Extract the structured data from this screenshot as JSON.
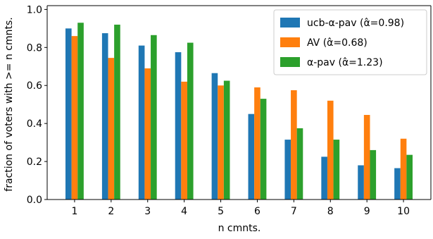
{
  "chart_data": {
    "type": "bar",
    "title": "",
    "xlabel": "n cmnts.",
    "ylabel": "fraction of voters with >= n cmnts.",
    "categories": [
      "1",
      "2",
      "3",
      "4",
      "5",
      "6",
      "7",
      "8",
      "9",
      "10"
    ],
    "ylim": [
      0,
      1.02
    ],
    "yticks": [
      "0.0",
      "0.2",
      "0.4",
      "0.6",
      "0.8",
      "1.0"
    ],
    "grid": false,
    "legend_position": "top-right",
    "series": [
      {
        "name": "ucb-α-pav (α̂=0.98)",
        "color": "#1f77b4",
        "values": [
          0.9,
          0.875,
          0.81,
          0.775,
          0.665,
          0.45,
          0.315,
          0.225,
          0.18,
          0.165
        ]
      },
      {
        "name": "AV (α̂=0.68)",
        "color": "#ff7f0e",
        "values": [
          0.86,
          0.745,
          0.69,
          0.62,
          0.6,
          0.59,
          0.575,
          0.52,
          0.445,
          0.32
        ]
      },
      {
        "name": "α-pav (α̂=1.23)",
        "color": "#2ca02c",
        "values": [
          0.93,
          0.92,
          0.865,
          0.825,
          0.625,
          0.53,
          0.375,
          0.315,
          0.26,
          0.235
        ]
      }
    ]
  }
}
